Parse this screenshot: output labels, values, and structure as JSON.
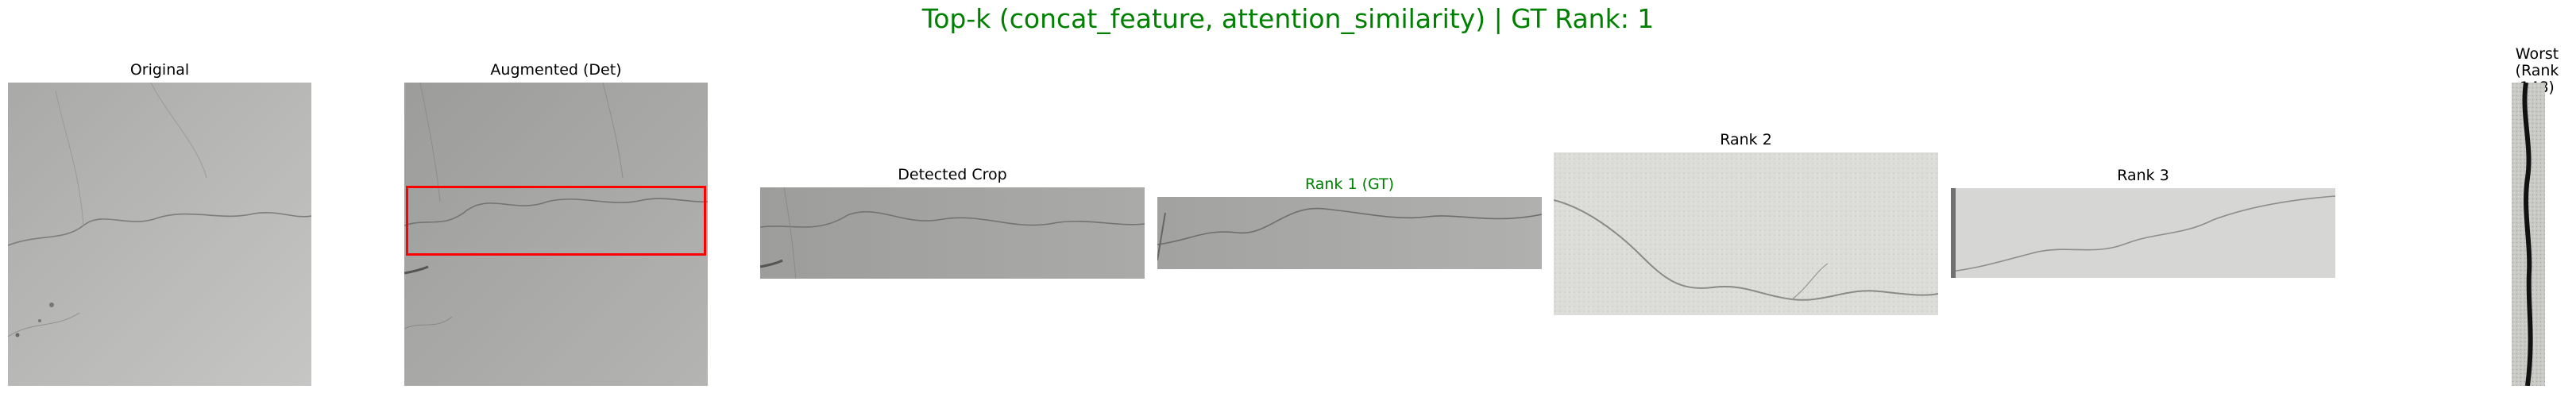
{
  "figure": {
    "title": "Top-k (concat_feature, attention_similarity) | GT Rank: 1",
    "title_color": "#008000",
    "panels": [
      {
        "id": "original",
        "label": "Original",
        "label_color": "#000000"
      },
      {
        "id": "augmented",
        "label": "Augmented (Det)",
        "label_color": "#000000",
        "box_color": "#ff0000"
      },
      {
        "id": "detected_crop",
        "label": "Detected Crop",
        "label_color": "#000000"
      },
      {
        "id": "rank1",
        "label": "Rank 1 (GT)",
        "label_color": "#008000"
      },
      {
        "id": "rank2",
        "label": "Rank 2",
        "label_color": "#000000"
      },
      {
        "id": "rank3",
        "label": "Rank 3",
        "label_color": "#000000"
      },
      {
        "id": "worst",
        "label_line1": "Worst",
        "label_line2": "(Rank 148)",
        "label_color": "#000000"
      }
    ]
  }
}
